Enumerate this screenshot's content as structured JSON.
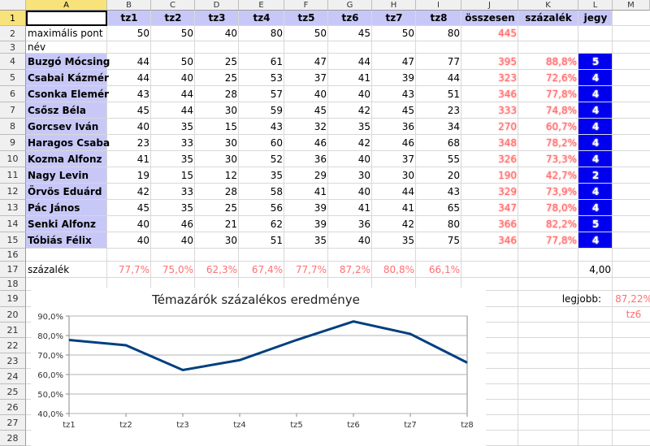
{
  "columns": [
    "A",
    "B",
    "C",
    "D",
    "E",
    "F",
    "G",
    "H",
    "I",
    "J",
    "K",
    "L",
    "M"
  ],
  "rows": [
    "1",
    "2",
    "3",
    "4",
    "5",
    "6",
    "7",
    "8",
    "9",
    "10",
    "11",
    "12",
    "13",
    "14",
    "15",
    "16",
    "17",
    "18",
    "19",
    "20",
    "21",
    "22",
    "23",
    "24",
    "25",
    "26",
    "27",
    "28"
  ],
  "header_row": [
    "tz1",
    "tz2",
    "tz3",
    "tz4",
    "tz5",
    "tz6",
    "tz7",
    "tz8",
    "összesen",
    "százalék",
    "jegy"
  ],
  "max_label": "maximális pont",
  "max_values": [
    "50",
    "50",
    "40",
    "80",
    "50",
    "45",
    "50",
    "80",
    "445"
  ],
  "name_label": "név",
  "students": [
    {
      "name": "Buzgó Mócsing",
      "scores": [
        "44",
        "50",
        "25",
        "61",
        "47",
        "44",
        "47",
        "77"
      ],
      "total": "395",
      "percent": "88,8%",
      "grade": "5"
    },
    {
      "name": "Csabai Kázmér",
      "scores": [
        "44",
        "40",
        "25",
        "53",
        "37",
        "41",
        "39",
        "44"
      ],
      "total": "323",
      "percent": "72,6%",
      "grade": "4"
    },
    {
      "name": "Csonka Elemér",
      "scores": [
        "43",
        "44",
        "28",
        "57",
        "40",
        "40",
        "43",
        "51"
      ],
      "total": "346",
      "percent": "77,8%",
      "grade": "4"
    },
    {
      "name": "Csősz Béla",
      "scores": [
        "45",
        "44",
        "30",
        "59",
        "45",
        "42",
        "45",
        "23"
      ],
      "total": "333",
      "percent": "74,8%",
      "grade": "4"
    },
    {
      "name": "Gorcsev Iván",
      "scores": [
        "40",
        "35",
        "15",
        "43",
        "32",
        "35",
        "36",
        "34"
      ],
      "total": "270",
      "percent": "60,7%",
      "grade": "4"
    },
    {
      "name": "Haragos Csaba",
      "scores": [
        "23",
        "33",
        "30",
        "60",
        "46",
        "42",
        "46",
        "68"
      ],
      "total": "348",
      "percent": "78,2%",
      "grade": "4"
    },
    {
      "name": "Kozma Alfonz",
      "scores": [
        "41",
        "35",
        "30",
        "52",
        "36",
        "40",
        "37",
        "55"
      ],
      "total": "326",
      "percent": "73,3%",
      "grade": "4"
    },
    {
      "name": "Nagy Levin",
      "scores": [
        "19",
        "15",
        "12",
        "35",
        "29",
        "30",
        "30",
        "20"
      ],
      "total": "190",
      "percent": "42,7%",
      "grade": "2"
    },
    {
      "name": "Örvös Eduárd",
      "scores": [
        "42",
        "33",
        "28",
        "58",
        "41",
        "40",
        "44",
        "43"
      ],
      "total": "329",
      "percent": "73,9%",
      "grade": "4"
    },
    {
      "name": "Pác János",
      "scores": [
        "45",
        "35",
        "25",
        "56",
        "39",
        "41",
        "41",
        "65"
      ],
      "total": "347",
      "percent": "78,0%",
      "grade": "4"
    },
    {
      "name": "Senki Alfonz",
      "scores": [
        "40",
        "46",
        "21",
        "62",
        "39",
        "36",
        "42",
        "80"
      ],
      "total": "366",
      "percent": "82,2%",
      "grade": "5"
    },
    {
      "name": "Tóbiás Félix",
      "scores": [
        "40",
        "40",
        "30",
        "51",
        "35",
        "40",
        "35",
        "75"
      ],
      "total": "346",
      "percent": "77,8%",
      "grade": "4"
    }
  ],
  "percent_label": "százalék",
  "percent_row": [
    "77,7%",
    "75,0%",
    "62,3%",
    "67,4%",
    "77,7%",
    "87,2%",
    "80,8%",
    "66,1%"
  ],
  "avg_grade": "4,00",
  "best_label": "legjobb:",
  "best_value": "87,22%",
  "best_test": "tz6",
  "colors": {
    "lavender": "#c8c8f8",
    "grade_blue": "#0000ee",
    "line": "#003f7f",
    "red": "#ff7070"
  },
  "chart_data": {
    "type": "line",
    "title": "Témazárók százalékos eredménye",
    "categories": [
      "tz1",
      "tz2",
      "tz3",
      "tz4",
      "tz5",
      "tz6",
      "tz7",
      "tz8"
    ],
    "series": [
      {
        "values": [
          77.7,
          75.0,
          62.3,
          67.4,
          77.7,
          87.2,
          80.8,
          66.1
        ]
      }
    ],
    "yticks": [
      "90,0%",
      "80,0%",
      "70,0%",
      "60,0%",
      "50,0%",
      "40,0%"
    ],
    "ylim": [
      40,
      90
    ],
    "grid": true
  }
}
